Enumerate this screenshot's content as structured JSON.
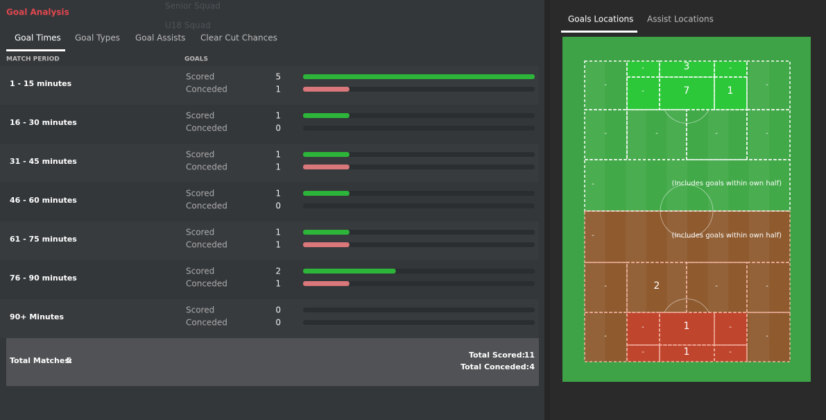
{
  "header": {
    "title": "Goal Analysis",
    "background_menu": [
      "Senior Squad",
      "U18 Squad"
    ]
  },
  "left_tabs": [
    "Goal Times",
    "Goal Types",
    "Goal Assists",
    "Clear Cut Chances"
  ],
  "columns": {
    "period": "MATCH PERIOD",
    "goals": "GOALS"
  },
  "row_labels": {
    "scored": "Scored",
    "conceded": "Conceded"
  },
  "periods": [
    {
      "label": "1 - 15 minutes",
      "scored": 5,
      "conceded": 1
    },
    {
      "label": "16 - 30 minutes",
      "scored": 1,
      "conceded": 0
    },
    {
      "label": "31 - 45 minutes",
      "scored": 1,
      "conceded": 1
    },
    {
      "label": "46 - 60 minutes",
      "scored": 1,
      "conceded": 0
    },
    {
      "label": "61 - 75 minutes",
      "scored": 1,
      "conceded": 1
    },
    {
      "label": "76 - 90 minutes",
      "scored": 2,
      "conceded": 1
    },
    {
      "label": "90+ Minutes",
      "scored": 0,
      "conceded": 0
    }
  ],
  "totals": {
    "matches_label": "Total Matches:",
    "matches": 5,
    "scored_label": "Total Scored:",
    "scored": 11,
    "conceded_label": "Total Conceded:",
    "conceded": 4
  },
  "right_tabs": [
    "Goals Locations",
    "Assist Locations"
  ],
  "zones": [
    "-",
    "-",
    3,
    "-",
    "-",
    7,
    1,
    "-",
    "-",
    "-",
    "-",
    "-",
    "-",
    "-",
    "-",
    2,
    "-",
    "-",
    "-",
    "-",
    1,
    "-",
    "-",
    1,
    "-",
    "-"
  ],
  "notes": [
    "(Includes goals within own half)",
    "(Includes goals within own half)"
  ]
}
